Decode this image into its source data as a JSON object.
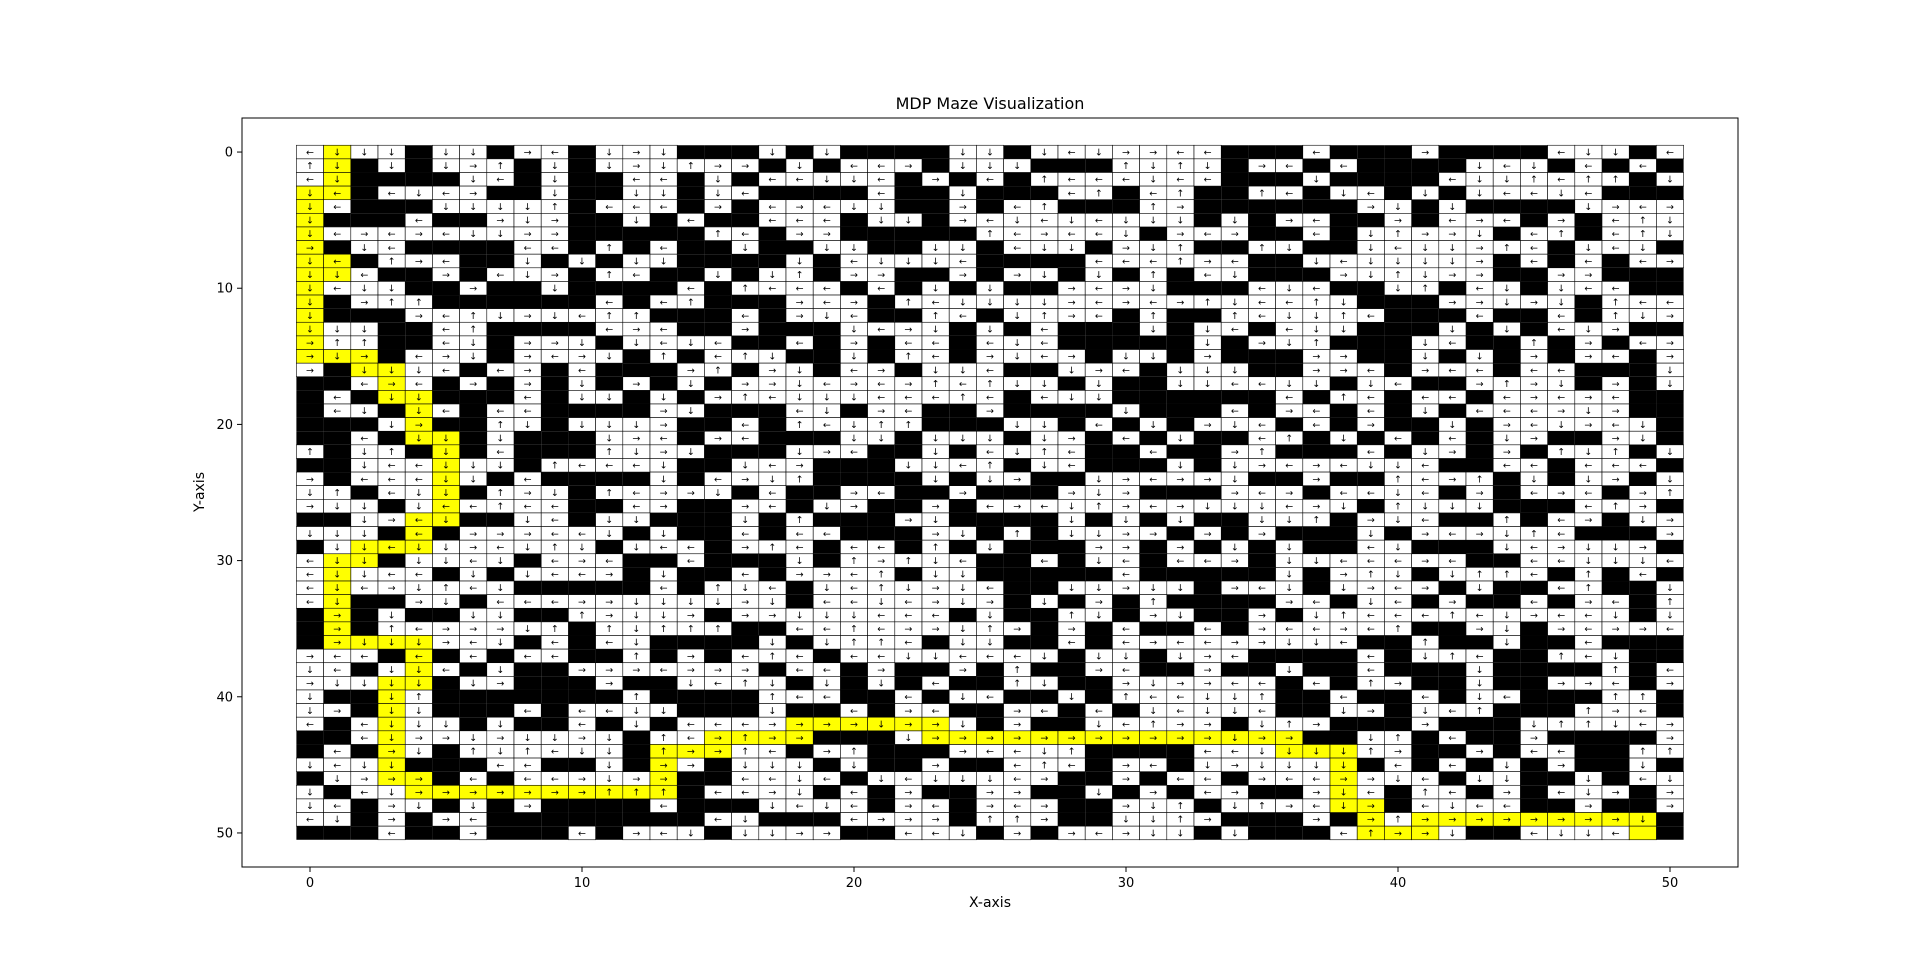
{
  "chart_data": {
    "type": "heatmap",
    "title": "MDP Maze Visualization",
    "xlabel": "X-axis",
    "ylabel": "Y-axis",
    "xlim": [
      -2.5,
      52.5
    ],
    "ylim": [
      52.5,
      -2.5
    ],
    "y_inverted": true,
    "grid_size": [
      51,
      51
    ],
    "xticks": [
      0,
      10,
      20,
      30,
      40,
      50
    ],
    "yticks": [
      0,
      10,
      20,
      30,
      40,
      50
    ],
    "xtick_labels": [
      "0",
      "10",
      "20",
      "30",
      "40",
      "50"
    ],
    "ytick_labels": [
      "0",
      "10",
      "20",
      "30",
      "40",
      "50"
    ],
    "cell_kinds": {
      "wall": "#000000",
      "open": "#ffffff",
      "path": "#ffff00"
    },
    "arrow_symbols": [
      "→",
      "←",
      "↑",
      "↓"
    ],
    "policy_path": [
      [
        1,
        0
      ],
      [
        1,
        1
      ],
      [
        1,
        2
      ],
      [
        1,
        3
      ],
      [
        0,
        3
      ],
      [
        0,
        4
      ],
      [
        0,
        5
      ],
      [
        0,
        6
      ],
      [
        0,
        7
      ],
      [
        0,
        8
      ],
      [
        1,
        8
      ],
      [
        1,
        9
      ],
      [
        0,
        9
      ],
      [
        0,
        10
      ],
      [
        0,
        11
      ],
      [
        0,
        12
      ],
      [
        0,
        13
      ],
      [
        0,
        14
      ],
      [
        0,
        15
      ],
      [
        1,
        15
      ],
      [
        2,
        15
      ],
      [
        2,
        16
      ],
      [
        3,
        16
      ],
      [
        3,
        17
      ],
      [
        3,
        18
      ],
      [
        4,
        18
      ],
      [
        4,
        19
      ],
      [
        4,
        20
      ],
      [
        4,
        21
      ],
      [
        5,
        21
      ],
      [
        5,
        22
      ],
      [
        5,
        23
      ],
      [
        5,
        24
      ],
      [
        5,
        25
      ],
      [
        5,
        26
      ],
      [
        5,
        27
      ],
      [
        4,
        27
      ],
      [
        4,
        28
      ],
      [
        4,
        29
      ],
      [
        3,
        29
      ],
      [
        2,
        29
      ],
      [
        2,
        30
      ],
      [
        1,
        30
      ],
      [
        1,
        31
      ],
      [
        1,
        32
      ],
      [
        1,
        33
      ],
      [
        1,
        34
      ],
      [
        1,
        35
      ],
      [
        1,
        36
      ],
      [
        2,
        36
      ],
      [
        3,
        36
      ],
      [
        4,
        36
      ],
      [
        4,
        37
      ],
      [
        4,
        38
      ],
      [
        4,
        39
      ],
      [
        3,
        39
      ],
      [
        3,
        40
      ],
      [
        3,
        41
      ],
      [
        3,
        42
      ],
      [
        3,
        43
      ],
      [
        3,
        44
      ],
      [
        3,
        45
      ],
      [
        3,
        46
      ],
      [
        4,
        46
      ],
      [
        4,
        47
      ],
      [
        5,
        47
      ],
      [
        6,
        47
      ],
      [
        7,
        47
      ],
      [
        8,
        47
      ],
      [
        9,
        47
      ],
      [
        10,
        47
      ],
      [
        11,
        47
      ],
      [
        12,
        47
      ],
      [
        13,
        47
      ],
      [
        13,
        46
      ],
      [
        13,
        45
      ],
      [
        13,
        44
      ],
      [
        14,
        44
      ],
      [
        15,
        44
      ],
      [
        15,
        43
      ],
      [
        16,
        43
      ],
      [
        17,
        43
      ],
      [
        18,
        43
      ],
      [
        18,
        42
      ],
      [
        19,
        42
      ],
      [
        20,
        42
      ],
      [
        21,
        42
      ],
      [
        22,
        42
      ],
      [
        23,
        42
      ],
      [
        23,
        43
      ],
      [
        24,
        43
      ],
      [
        25,
        43
      ],
      [
        26,
        43
      ],
      [
        27,
        43
      ],
      [
        28,
        43
      ],
      [
        29,
        43
      ],
      [
        30,
        43
      ],
      [
        31,
        43
      ],
      [
        32,
        43
      ],
      [
        33,
        43
      ],
      [
        34,
        43
      ],
      [
        35,
        43
      ],
      [
        36,
        43
      ],
      [
        36,
        44
      ],
      [
        37,
        44
      ],
      [
        38,
        44
      ],
      [
        38,
        45
      ],
      [
        38,
        46
      ],
      [
        38,
        47
      ],
      [
        38,
        48
      ],
      [
        39,
        48
      ],
      [
        39,
        49
      ],
      [
        39,
        50
      ],
      [
        40,
        50
      ],
      [
        41,
        50
      ],
      [
        41,
        49
      ],
      [
        42,
        49
      ],
      [
        43,
        49
      ],
      [
        44,
        49
      ],
      [
        45,
        49
      ],
      [
        46,
        49
      ],
      [
        47,
        49
      ],
      [
        48,
        49
      ],
      [
        49,
        49
      ],
      [
        49,
        50
      ]
    ],
    "path_arrows": [
      "↓",
      "↓",
      "↓",
      "←",
      "↓",
      "↓",
      "↓",
      "↓",
      "→",
      "↓",
      "←",
      "↓",
      "↓",
      "↓",
      "↓",
      "↓",
      "↓",
      "→",
      "→",
      "↓",
      "→",
      "↓",
      "↓",
      "→",
      "↓",
      "↓",
      "↓",
      "→",
      "↓",
      "↓",
      "↓",
      "↓",
      "↓",
      "↓",
      "←",
      "↓",
      "←",
      "←",
      "↓",
      "←",
      "↓",
      "↓",
      "↓",
      "↓",
      "↓",
      "↓",
      "→",
      "→",
      "→",
      "↓",
      "↓",
      "↓",
      "←",
      "↓",
      "↓",
      "↓",
      "↓",
      "↓",
      "↓",
      "↓",
      "→",
      "↓",
      "→",
      "→",
      "→",
      "→",
      "→",
      "→",
      "→",
      "→",
      "→",
      "↑",
      "↑",
      "↑",
      "→",
      "→",
      "↑",
      "→",
      "→",
      "→",
      "↑",
      "→",
      "→",
      "→",
      "→",
      "→",
      "↓",
      "→",
      "→",
      "→",
      "→",
      "→",
      "→",
      "→",
      "→",
      "→",
      "→",
      "→",
      "→",
      "→",
      "↓",
      "→",
      "→",
      "↓",
      "↓",
      "↓",
      "↓",
      "→",
      "↓",
      "↓",
      "→",
      "→",
      "↑",
      "→",
      "→",
      "→",
      "→",
      "→",
      "→",
      "→",
      "→",
      "→",
      "→",
      "↓",
      ""
    ]
  }
}
